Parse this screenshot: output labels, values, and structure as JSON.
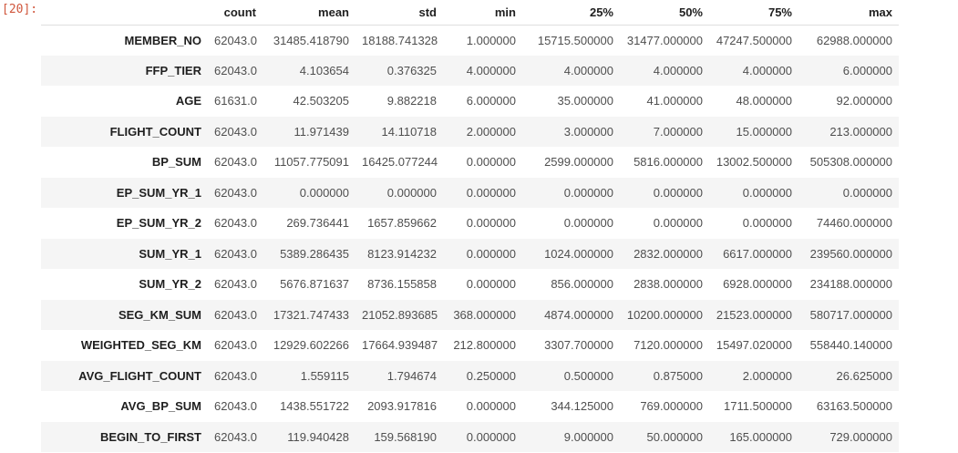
{
  "prompt": {
    "label": "[20]:"
  },
  "colors": {
    "prompt": "#d0563c",
    "stripe": "#f5f5f5",
    "header_border": "#dfdfdf",
    "label_text": "#1f1f1f",
    "value_text": "#4f4f4f",
    "background": "#ffffff"
  },
  "table": {
    "columns": [
      "count",
      "mean",
      "std",
      "min",
      "25%",
      "50%",
      "75%",
      "max"
    ],
    "rows": [
      {
        "name": "MEMBER_NO",
        "values": [
          "62043.0",
          "31485.418790",
          "18188.741328",
          "1.000000",
          "15715.500000",
          "31477.000000",
          "47247.500000",
          "62988.000000"
        ]
      },
      {
        "name": "FFP_TIER",
        "values": [
          "62043.0",
          "4.103654",
          "0.376325",
          "4.000000",
          "4.000000",
          "4.000000",
          "4.000000",
          "6.000000"
        ]
      },
      {
        "name": "AGE",
        "values": [
          "61631.0",
          "42.503205",
          "9.882218",
          "6.000000",
          "35.000000",
          "41.000000",
          "48.000000",
          "92.000000"
        ]
      },
      {
        "name": "FLIGHT_COUNT",
        "values": [
          "62043.0",
          "11.971439",
          "14.110718",
          "2.000000",
          "3.000000",
          "7.000000",
          "15.000000",
          "213.000000"
        ]
      },
      {
        "name": "BP_SUM",
        "values": [
          "62043.0",
          "11057.775091",
          "16425.077244",
          "0.000000",
          "2599.000000",
          "5816.000000",
          "13002.500000",
          "505308.000000"
        ]
      },
      {
        "name": "EP_SUM_YR_1",
        "values": [
          "62043.0",
          "0.000000",
          "0.000000",
          "0.000000",
          "0.000000",
          "0.000000",
          "0.000000",
          "0.000000"
        ]
      },
      {
        "name": "EP_SUM_YR_2",
        "values": [
          "62043.0",
          "269.736441",
          "1657.859662",
          "0.000000",
          "0.000000",
          "0.000000",
          "0.000000",
          "74460.000000"
        ]
      },
      {
        "name": "SUM_YR_1",
        "values": [
          "62043.0",
          "5389.286435",
          "8123.914232",
          "0.000000",
          "1024.000000",
          "2832.000000",
          "6617.000000",
          "239560.000000"
        ]
      },
      {
        "name": "SUM_YR_2",
        "values": [
          "62043.0",
          "5676.871637",
          "8736.155858",
          "0.000000",
          "856.000000",
          "2838.000000",
          "6928.000000",
          "234188.000000"
        ]
      },
      {
        "name": "SEG_KM_SUM",
        "values": [
          "62043.0",
          "17321.747433",
          "21052.893685",
          "368.000000",
          "4874.000000",
          "10200.000000",
          "21523.000000",
          "580717.000000"
        ]
      },
      {
        "name": "WEIGHTED_SEG_KM",
        "values": [
          "62043.0",
          "12929.602266",
          "17664.939487",
          "212.800000",
          "3307.700000",
          "7120.000000",
          "15497.020000",
          "558440.140000"
        ]
      },
      {
        "name": "AVG_FLIGHT_COUNT",
        "values": [
          "62043.0",
          "1.559115",
          "1.794674",
          "0.250000",
          "0.500000",
          "0.875000",
          "2.000000",
          "26.625000"
        ]
      },
      {
        "name": "AVG_BP_SUM",
        "values": [
          "62043.0",
          "1438.551722",
          "2093.917816",
          "0.000000",
          "344.125000",
          "769.000000",
          "1711.500000",
          "63163.500000"
        ]
      },
      {
        "name": "BEGIN_TO_FIRST",
        "values": [
          "62043.0",
          "119.940428",
          "159.568190",
          "0.000000",
          "9.000000",
          "50.000000",
          "165.000000",
          "729.000000"
        ]
      }
    ]
  }
}
